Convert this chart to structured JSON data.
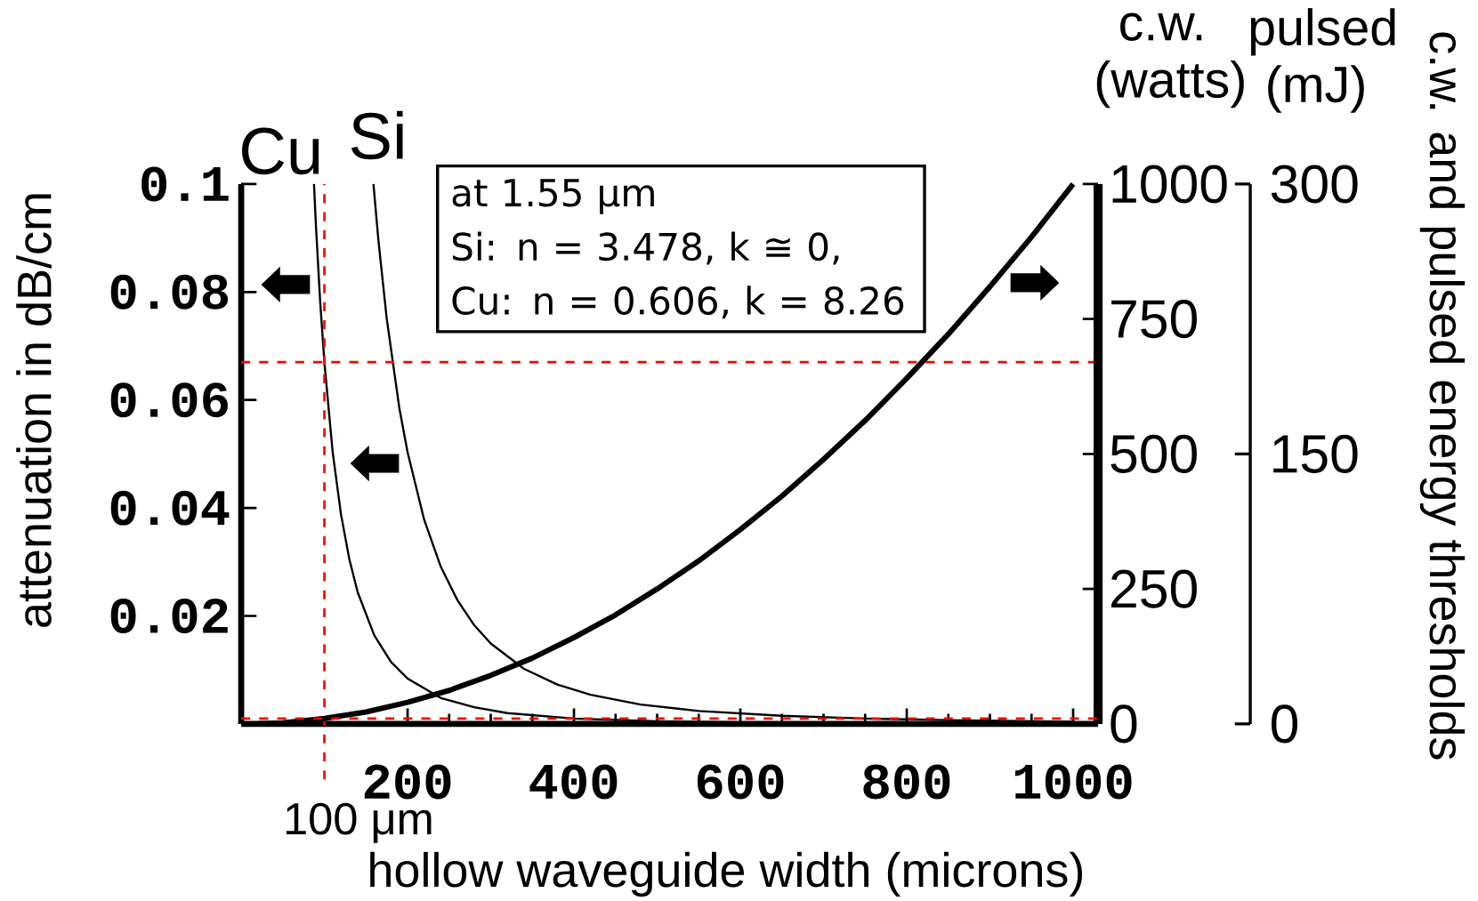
{
  "chart_data": {
    "type": "line",
    "xlabel": "hollow waveguide width (microns)",
    "ylabel": "attenuation in dB/cm",
    "y2label": "c.w. and pulsed energy thresholds",
    "annotations": [
      "at 1.55 μm",
      "Si:  n = 3.478, k ≅ 0,",
      "Cu: n = 0.606, k = 8.26",
      "c.w. (watts)",
      "pulsed (mJ)"
    ],
    "xlim": [
      0,
      1030
    ],
    "ylim": [
      0,
      0.1
    ],
    "y2lim": [
      0,
      1000
    ],
    "y3lim": [
      0,
      300
    ],
    "xticks": [
      200,
      400,
      600,
      800,
      1000
    ],
    "yticks": [
      0.02,
      0.04,
      0.06,
      0.08,
      0.1
    ],
    "y2ticks": [
      0,
      250,
      500,
      750,
      1000
    ],
    "y3ticks": [
      0,
      150,
      300
    ],
    "series": [
      {
        "name": "Cu",
        "color": "#000000",
        "x": [
          87.5,
          90,
          95,
          100,
          110,
          120,
          130,
          140,
          160,
          180,
          200,
          240,
          280,
          320,
          400,
          500,
          600,
          800,
          1000
        ],
        "values": [
          0.1,
          0.0919,
          0.0781,
          0.067,
          0.0503,
          0.0388,
          0.0305,
          0.0244,
          0.0164,
          0.0115,
          0.0084,
          0.0048,
          0.0031,
          0.002,
          0.001,
          0.0005,
          0.0003,
          0.0001,
          0.0001
        ]
      },
      {
        "name": "Si",
        "color": "#000000",
        "x": [
          159,
          165,
          175,
          190,
          200,
          220,
          240,
          260,
          280,
          300,
          340,
          380,
          420,
          480,
          550,
          650,
          750,
          850,
          1000
        ],
        "values": [
          0.1,
          0.0895,
          0.075,
          0.0586,
          0.0503,
          0.0378,
          0.0291,
          0.0229,
          0.0183,
          0.0149,
          0.0102,
          0.0073,
          0.0054,
          0.0036,
          0.0024,
          0.0015,
          0.001,
          0.0007,
          0.0004
        ]
      },
      {
        "color": "#000000",
        "axis": "y2",
        "x": [
          20,
          50,
          100,
          150,
          200,
          250,
          300,
          350,
          400,
          450,
          500,
          550,
          600,
          650,
          700,
          750,
          800,
          850,
          900,
          950,
          1000
        ],
        "values": [
          0,
          2,
          10,
          22,
          40,
          62,
          90,
          122,
          160,
          202,
          250,
          302,
          360,
          422,
          490,
          562,
          640,
          722,
          810,
          902,
          1000
        ]
      }
    ],
    "ref_lines": [
      {
        "axis": "x",
        "value": 100,
        "label": "100 μm",
        "color": "#ff0000",
        "line_style": "dashed"
      },
      {
        "axis": "y",
        "value": 0.067,
        "color": "#ff0000",
        "line_style": "dashed"
      },
      {
        "axis": "y2",
        "value": 10,
        "color": "#ff0000",
        "line_style": "dashed"
      }
    ]
  }
}
